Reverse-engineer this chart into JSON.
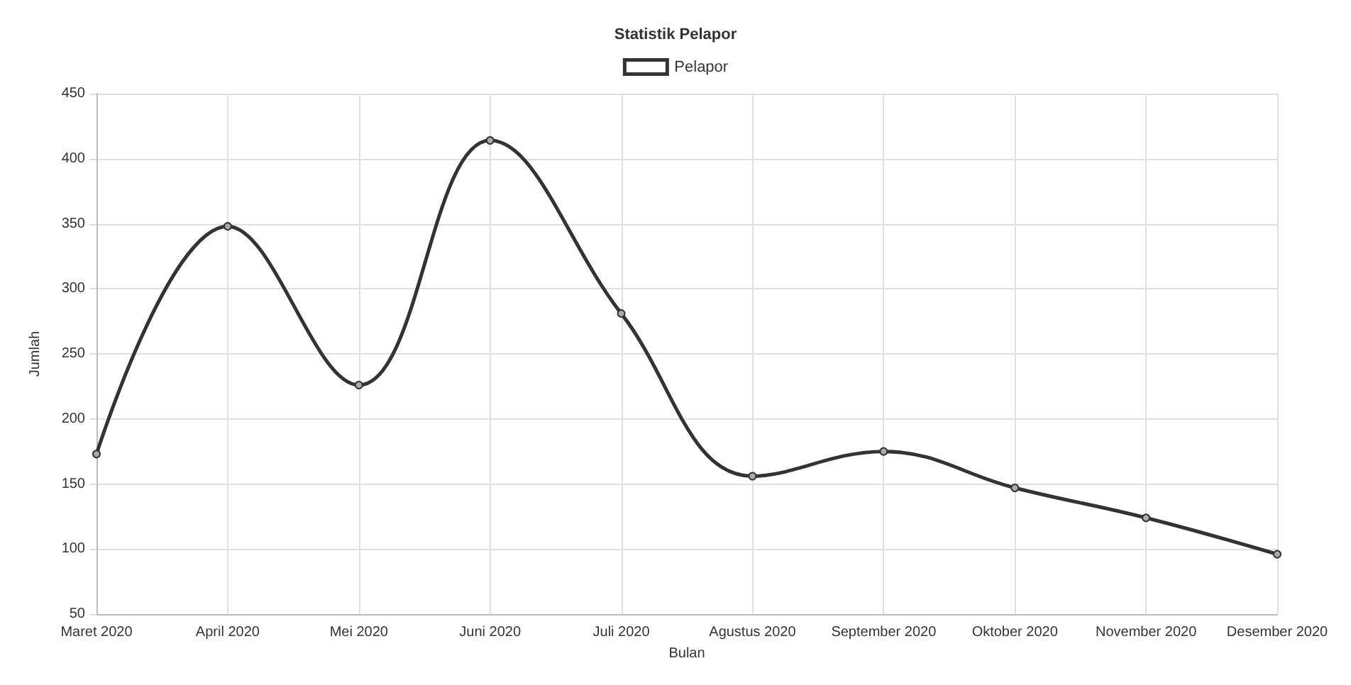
{
  "chart_data": {
    "type": "line",
    "title": "Statistik Pelapor",
    "xlabel": "Bulan",
    "ylabel": "Jumlah",
    "categories": [
      "Maret 2020",
      "April 2020",
      "Mei 2020",
      "Juni 2020",
      "Juli 2020",
      "Agustus 2020",
      "September 2020",
      "Oktober 2020",
      "November 2020",
      "Desember 2020"
    ],
    "series": [
      {
        "name": "Pelapor",
        "color": "#333333",
        "values": [
          173,
          348,
          226,
          414,
          281,
          156,
          175,
          147,
          124,
          96
        ]
      }
    ],
    "ylim": [
      50,
      450
    ],
    "yticks": [
      50,
      100,
      150,
      200,
      250,
      300,
      350,
      400,
      450
    ],
    "grid": true,
    "legend": "top",
    "marker": "circle",
    "line_style": "solid"
  }
}
